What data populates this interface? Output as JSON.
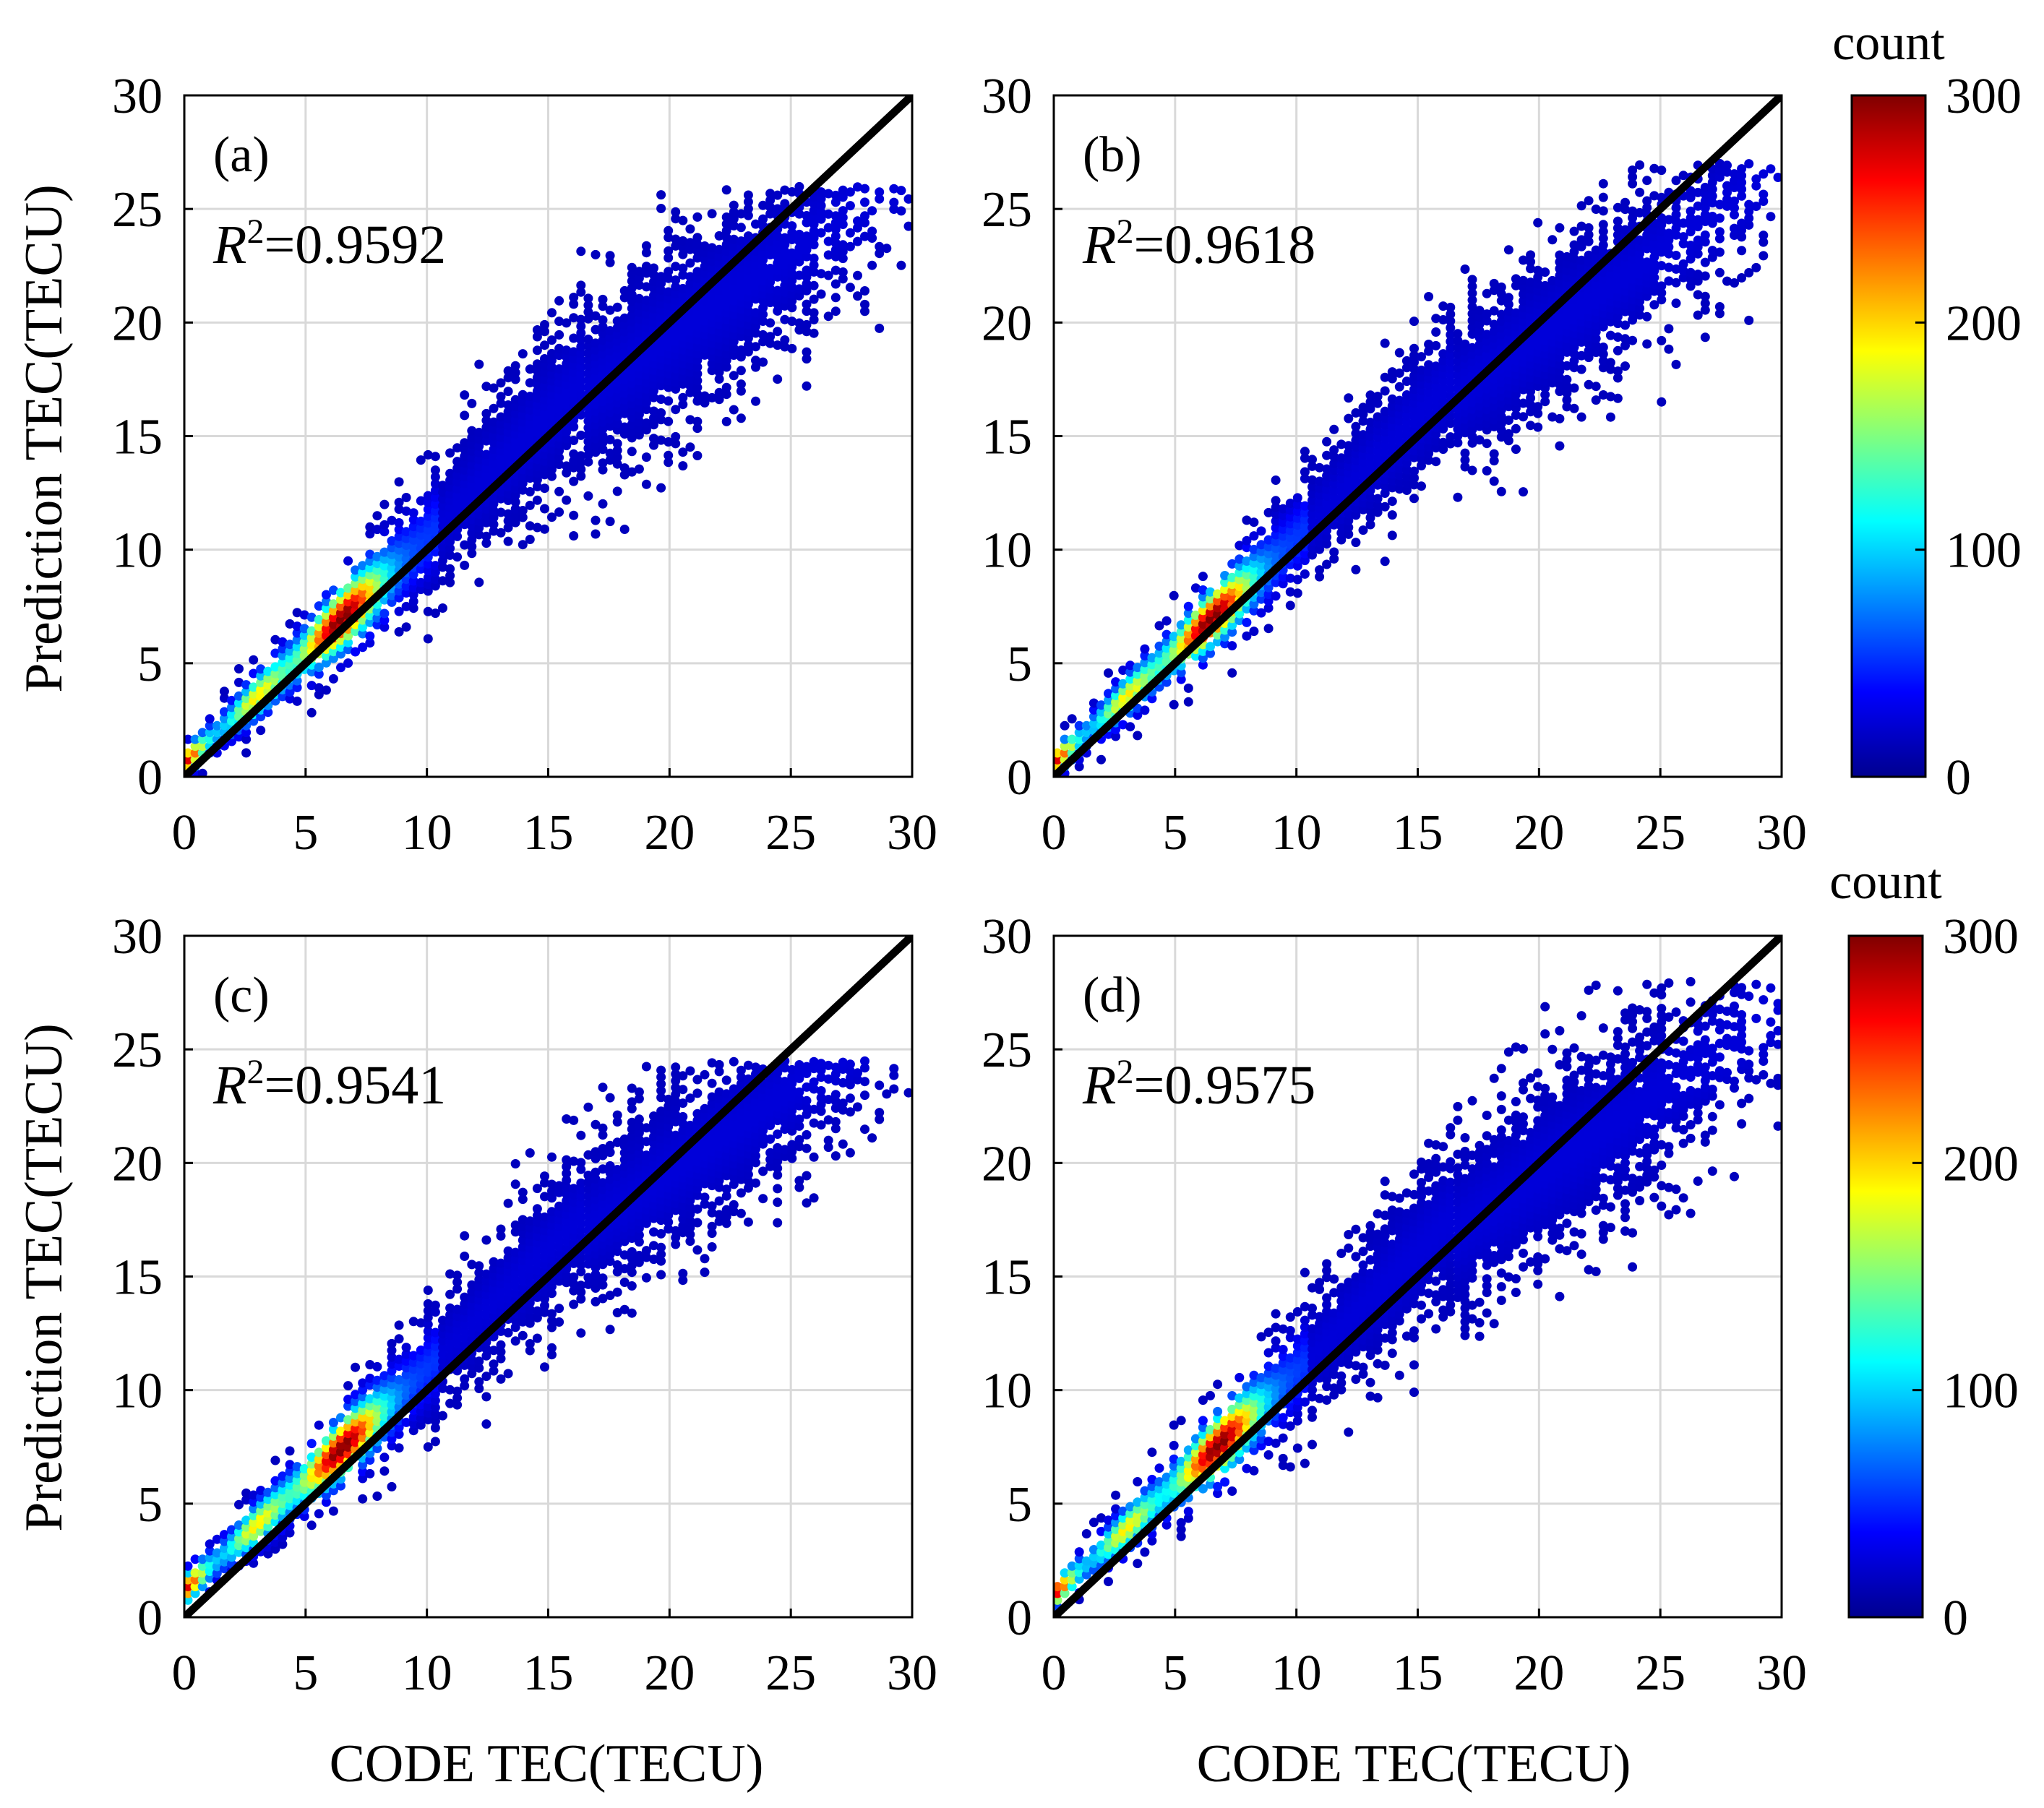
{
  "figure": {
    "ylabel": "Prediction TEC(TECU)",
    "xlabel": "CODE TEC(TECU)"
  },
  "colorbar": {
    "title": "count",
    "ticks": [
      "0",
      "100",
      "200",
      "300"
    ],
    "range": [
      0,
      300
    ],
    "colormap": "jet"
  },
  "colors": {
    "line": "#000000",
    "grid": "#d9d9d9",
    "frame": "#000000"
  },
  "chart_data": [
    {
      "type": "heatmap",
      "panel": "(a)",
      "r2_symbol": "R",
      "r2_exponent": "2",
      "r2_value": "=0.9592",
      "xlim": [
        0,
        30
      ],
      "ylim": [
        0,
        30
      ],
      "xticks": [
        "0",
        "5",
        "10",
        "15",
        "20",
        "25",
        "30"
      ],
      "yticks": [
        "0",
        "5",
        "10",
        "15",
        "20",
        "25",
        "30"
      ],
      "reference_line": [
        [
          0,
          0
        ],
        [
          30,
          30
        ]
      ],
      "density_profile": {
        "offset": 0.6,
        "spread_low": 0.8,
        "spread_high": 4.0,
        "peak_x": 6.5,
        "peak_count": 300,
        "max_y": 26
      }
    },
    {
      "type": "heatmap",
      "panel": "(b)",
      "r2_symbol": "R",
      "r2_exponent": "2",
      "r2_value": "=0.9618",
      "xlim": [
        0,
        30
      ],
      "ylim": [
        0,
        30
      ],
      "xticks": [
        "0",
        "5",
        "10",
        "15",
        "20",
        "25",
        "30"
      ],
      "yticks": [
        "0",
        "5",
        "10",
        "15",
        "20",
        "25",
        "30"
      ],
      "reference_line": [
        [
          0,
          0
        ],
        [
          30,
          30
        ]
      ],
      "density_profile": {
        "offset": 0.6,
        "spread_low": 0.8,
        "spread_high": 3.5,
        "peak_x": 6.5,
        "peak_count": 300,
        "max_y": 27
      }
    },
    {
      "type": "heatmap",
      "panel": "(c)",
      "r2_symbol": "R",
      "r2_exponent": "2",
      "r2_value": "=0.9541",
      "xlim": [
        0,
        30
      ],
      "ylim": [
        0,
        30
      ],
      "xticks": [
        "0",
        "5",
        "10",
        "15",
        "20",
        "25",
        "30"
      ],
      "yticks": [
        "0",
        "5",
        "10",
        "15",
        "20",
        "25",
        "30"
      ],
      "reference_line": [
        [
          0,
          0
        ],
        [
          30,
          30
        ]
      ],
      "density_profile": {
        "offset": 1.2,
        "spread_low": 0.9,
        "spread_high": 3.5,
        "peak_x": 6.5,
        "peak_count": 300,
        "max_y": 24.5
      }
    },
    {
      "type": "heatmap",
      "panel": "(d)",
      "r2_symbol": "R",
      "r2_exponent": "2",
      "r2_value": "=0.9575",
      "xlim": [
        0,
        30
      ],
      "ylim": [
        0,
        30
      ],
      "xticks": [
        "0",
        "5",
        "10",
        "15",
        "20",
        "25",
        "30"
      ],
      "yticks": [
        "0",
        "5",
        "10",
        "15",
        "20",
        "25",
        "30"
      ],
      "reference_line": [
        [
          0,
          0
        ],
        [
          30,
          30
        ]
      ],
      "density_profile": {
        "offset": 1.0,
        "spread_low": 0.8,
        "spread_high": 3.8,
        "peak_x": 6.8,
        "peak_count": 300,
        "max_y": 28
      }
    }
  ]
}
